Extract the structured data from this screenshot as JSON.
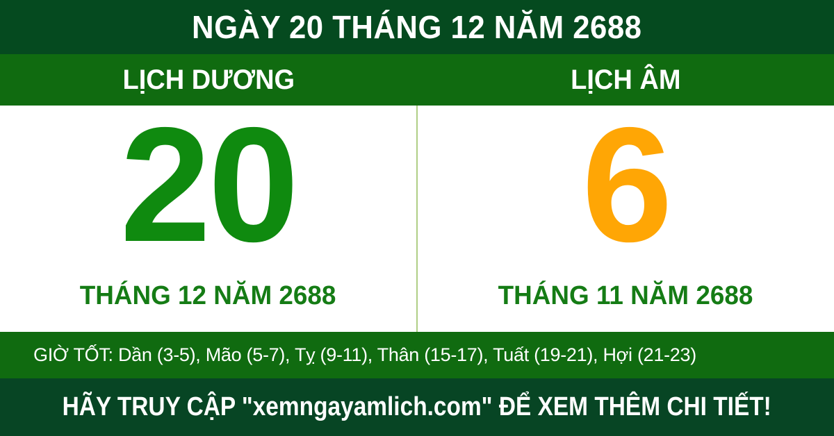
{
  "banner": {
    "title": "NGÀY 20 THÁNG 12 NĂM 2688"
  },
  "columns": {
    "solar": {
      "header": "LỊCH DƯƠNG",
      "day": "20",
      "month_year": "THÁNG 12 NĂM 2688"
    },
    "lunar": {
      "header": "LỊCH ÂM",
      "day": "6",
      "month_year": "THÁNG 11 NĂM 2688"
    }
  },
  "good_hours": {
    "text": "GIỜ TỐT: Dần (3-5), Mão (5-7), Tỵ (9-11), Thân (15-17), Tuất (19-21), Hợi (21-23)"
  },
  "footer": {
    "text": "HÃY TRUY CẬP \"xemngayamlich.com\" ĐỂ XEM THÊM CHI TIẾT!",
    "website": "xemngayamlich.com"
  },
  "colors": {
    "dark_green": "#054A1F",
    "medium_green": "#106B10",
    "footer_green": "#074524",
    "solar_green": "#0F8A0F",
    "month_green": "#157C15",
    "lunar_orange": "#FFA605",
    "divider_green": "#AFCE85",
    "text_white": "#FFFFFF"
  }
}
